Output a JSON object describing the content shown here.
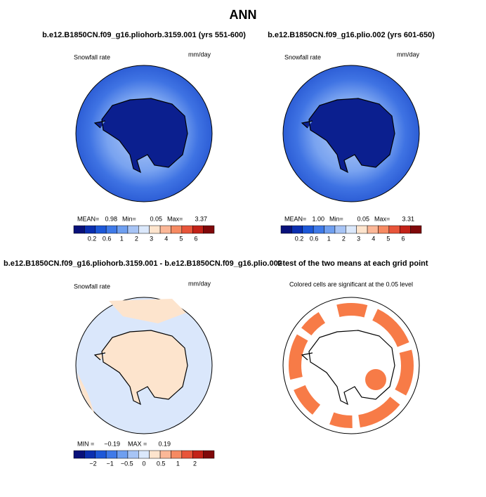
{
  "title": "ANN",
  "panels": [
    {
      "title": "b.e12.B1850CN.f09_g16.pliohorb.3159.001 (yrs 551-600)",
      "left_label": "Snowfall rate",
      "right_label": "mm/day",
      "stats": [
        "MEAN=",
        "0.98",
        "Min=",
        "0.05",
        "Max=",
        "3.37"
      ],
      "colorbar": [
        "0.2",
        "0.6",
        "1",
        "2",
        "3",
        "4",
        "5",
        "6"
      ]
    },
    {
      "title": "b.e12.B1850CN.f09_g16.plio.002 (yrs 601-650)",
      "left_label": "Snowfall rate",
      "right_label": "mm/day",
      "stats": [
        "MEAN=",
        "1.00",
        "Min=",
        "0.05",
        "Max=",
        "3.31"
      ],
      "colorbar": [
        "0.2",
        "0.6",
        "1",
        "2",
        "3",
        "4",
        "5",
        "6"
      ]
    },
    {
      "title": "b.e12.B1850CN.f09_g16.pliohorb.3159.001 - b.e12.B1850CN.f09_g16.plio.002",
      "left_label": "Snowfall rate",
      "right_label": "mm/day",
      "stats": [
        "MIN =",
        "−0.19",
        "MAX =",
        "0.19"
      ],
      "colorbar": [
        "−2",
        "−1",
        "−0.5",
        "0",
        "0.5",
        "1",
        "2"
      ]
    },
    {
      "title": "t-test of the two means at each grid point",
      "note": "Colored cells are significant at the 0.05 level"
    }
  ]
}
